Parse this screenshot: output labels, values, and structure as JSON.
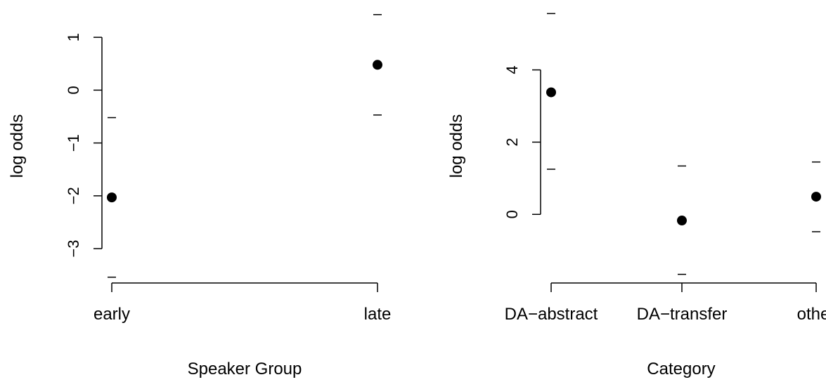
{
  "chart_data": [
    {
      "type": "scatter",
      "title": "",
      "xlabel": "Speaker Group",
      "ylabel": "log odds",
      "categories": [
        "early",
        "late"
      ],
      "values": [
        -2.03,
        0.48
      ],
      "lower": [
        -3.54,
        -0.47
      ],
      "upper": [
        -0.52,
        1.43
      ],
      "ylim": [
        -3.65,
        1.6
      ],
      "yticks": [
        -3,
        -2,
        -1,
        0,
        1
      ],
      "ytick_labels": [
        "−3",
        "−2",
        "−1",
        "0",
        "1"
      ],
      "grid": false,
      "legend": "none",
      "color": "#000000"
    },
    {
      "type": "scatter",
      "title": "",
      "xlabel": "Category",
      "ylabel": "log odds",
      "categories": [
        "DA−abstract",
        "DA−transfer",
        "other"
      ],
      "values": [
        3.38,
        -0.17,
        0.49
      ],
      "lower": [
        1.25,
        -1.66,
        -0.48
      ],
      "upper": [
        5.56,
        1.34,
        1.45
      ],
      "ylim": [
        -1.9,
        5.78
      ],
      "yticks": [
        0,
        2,
        4
      ],
      "ytick_labels": [
        "0",
        "2",
        "4"
      ],
      "grid": false,
      "legend": "none",
      "color": "#000000"
    }
  ]
}
